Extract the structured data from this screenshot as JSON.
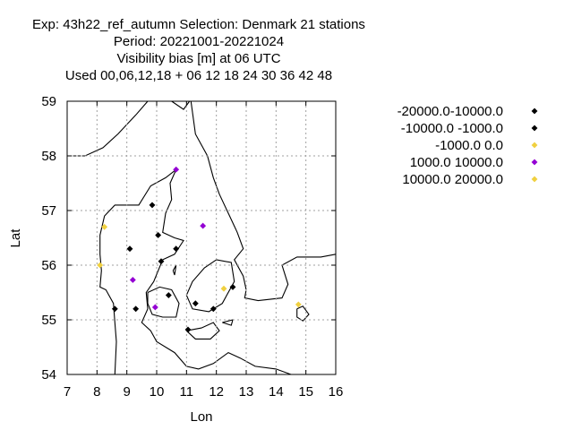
{
  "chart_data": {
    "type": "scatter",
    "title_lines": [
      "Exp: 43h22_ref_autumn    Selection: Denmark      21 stations",
      "Period: 20221001-20221024",
      "Visibility bias [m] at  06 UTC",
      "Used  00,06,12,18  + 06 12 18 24 30 36 42 48"
    ],
    "xlabel": "Lon",
    "ylabel": "Lat",
    "xlim": [
      7,
      16
    ],
    "ylim": [
      54,
      59
    ],
    "xticks": [
      "7",
      "8",
      "9",
      "10",
      "11",
      "12",
      "13",
      "14",
      "15",
      "16"
    ],
    "yticks": [
      "54",
      "55",
      "56",
      "57",
      "58",
      "59"
    ],
    "grid": true,
    "legend_position": "right",
    "series": [
      {
        "name": "-20000.0-10000.0",
        "color": "#000000",
        "points": []
      },
      {
        "name": "-10000.0 -1000.0",
        "color": "#000000",
        "points": [
          [
            9.85,
            57.1
          ],
          [
            9.1,
            56.3
          ],
          [
            10.05,
            56.55
          ],
          [
            10.65,
            56.3
          ],
          [
            10.15,
            56.07
          ],
          [
            8.6,
            55.2
          ],
          [
            9.3,
            55.2
          ],
          [
            10.4,
            55.45
          ],
          [
            11.3,
            55.3
          ],
          [
            11.9,
            55.2
          ],
          [
            12.55,
            55.6
          ],
          [
            11.05,
            54.82
          ]
        ]
      },
      {
        "name": "-1000.0 0.0",
        "color": "#f0d040",
        "points": [
          [
            8.25,
            56.7
          ],
          [
            8.1,
            56.0
          ],
          [
            12.25,
            55.57
          ],
          [
            14.75,
            55.28
          ]
        ]
      },
      {
        "name": "1000.0 10000.0",
        "color": "#9400d3",
        "points": [
          [
            10.65,
            57.75
          ],
          [
            9.2,
            55.73
          ],
          [
            11.55,
            56.72
          ],
          [
            9.95,
            55.23
          ]
        ]
      },
      {
        "name": "10000.0 20000.0",
        "color": "#f0d040",
        "points": []
      }
    ]
  }
}
